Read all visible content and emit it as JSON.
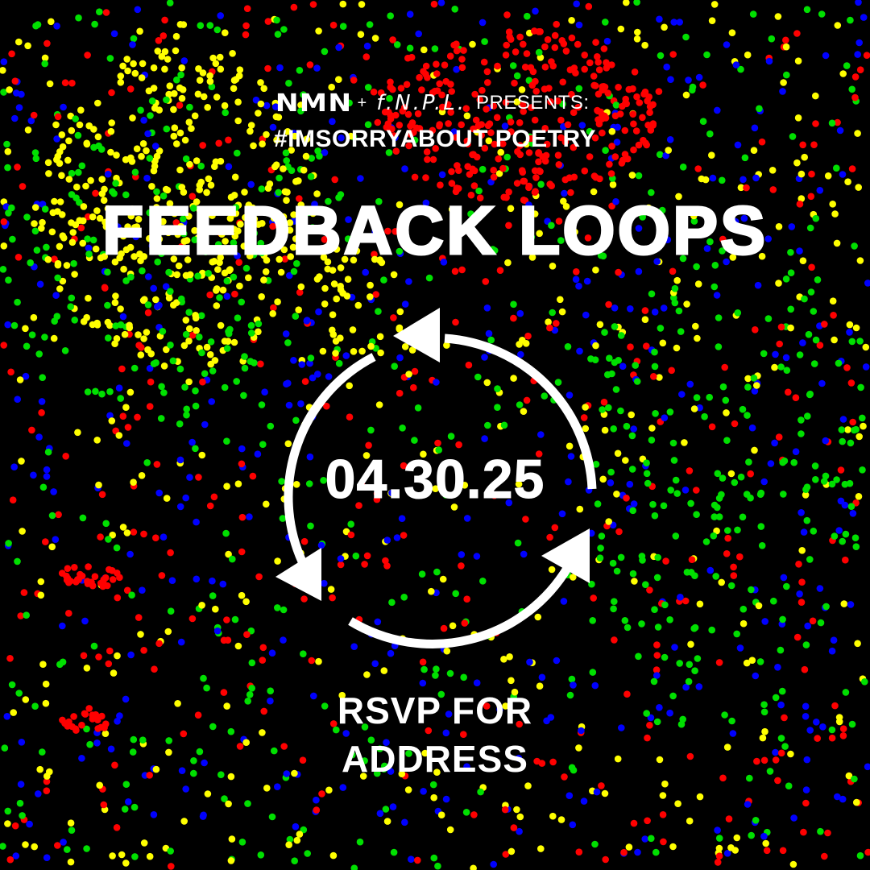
{
  "header": {
    "logo_nmn": "NMN",
    "plus": "+",
    "logo_fnpl": "f.N.P.L.",
    "presents": "PRESENTS:",
    "hashtag": "#IMSORRYABOUT POETRY"
  },
  "event": {
    "title": "FEEDBACK LOOPS",
    "date": "04.30.25",
    "rsvp_line1": "RSVP FOR",
    "rsvp_line2": "ADDRESS"
  },
  "icon": "cycle-arrows-icon",
  "colors": {
    "background": "#000000",
    "text": "#FFFFFF",
    "dots": [
      "#FF0000",
      "#00E000",
      "#0000FF",
      "#FFFF00"
    ]
  }
}
